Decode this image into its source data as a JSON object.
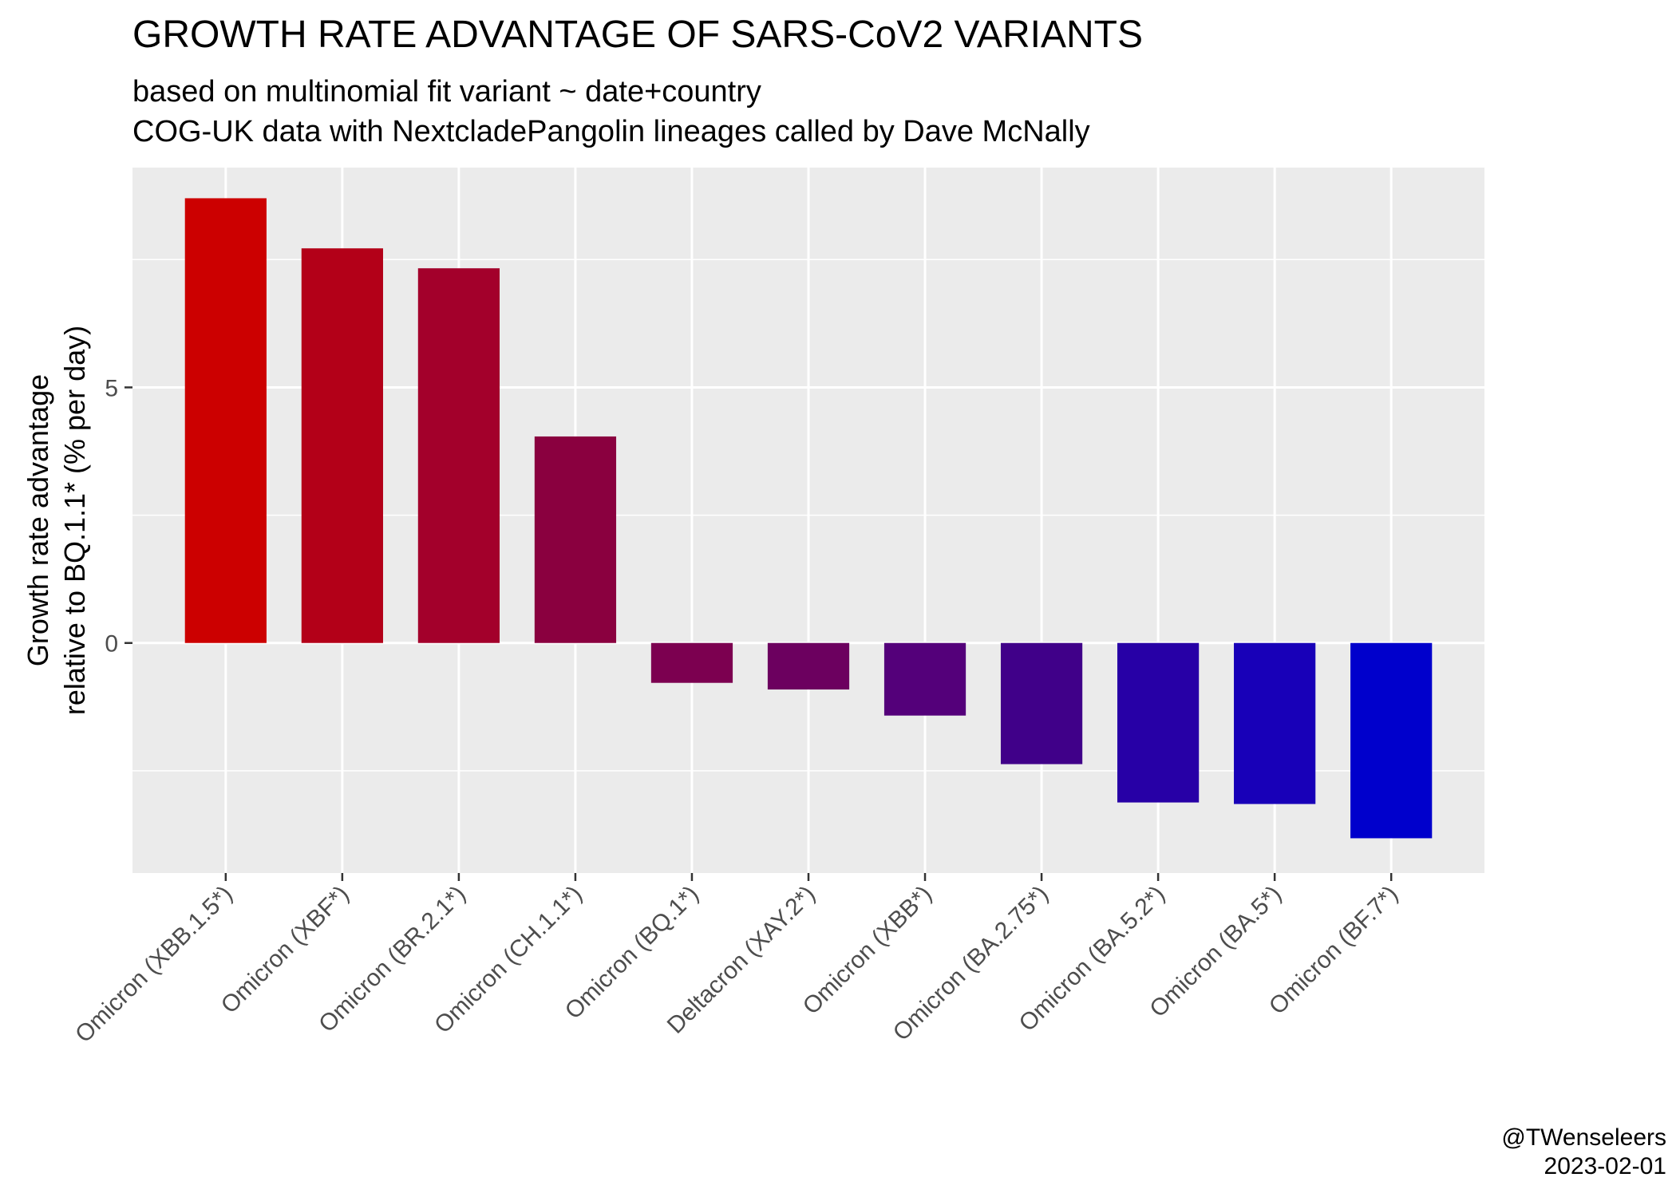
{
  "chart_data": {
    "type": "bar",
    "title": "GROWTH RATE ADVANTAGE OF SARS-CoV2 VARIANTS",
    "subtitle_lines": [
      "based on multinomial fit variant ~ date+country",
      "COG-UK data with NextcladePangolin lineages called by Dave McNally"
    ],
    "ylabel_lines": [
      "Growth rate advantage",
      "relative to BQ.1.1* (% per day)"
    ],
    "xlabel": "",
    "categories": [
      "Omicron (XBB.1.5*)",
      "Omicron (XBF*)",
      "Omicron (BR.2.1*)",
      "Omicron (CH.1.1*)",
      "Omicron (BQ.1*)",
      "Deltacron (XAY.2*)",
      "Omicron (XBB*)",
      "Omicron (BA.2.75*)",
      "Omicron (BA.5.2*)",
      "Omicron (BA.5*)",
      "Omicron (BF.7*)"
    ],
    "values": [
      8.7,
      7.72,
      7.33,
      4.04,
      -0.78,
      -0.91,
      -1.42,
      -2.37,
      -3.12,
      -3.15,
      -3.82
    ],
    "colors": [
      "#cc0000",
      "#b30018",
      "#a3002b",
      "#8a003f",
      "#7c0050",
      "#6c005f",
      "#54007a",
      "#400089",
      "#2700a6",
      "#1800b8",
      "#0000cc"
    ],
    "yticks": [
      0,
      5
    ],
    "ylim": [
      -4.5,
      9.3
    ],
    "grid": true,
    "legend": "none"
  },
  "credit": {
    "author": "@TWenseleers",
    "date": "2023-02-01"
  }
}
